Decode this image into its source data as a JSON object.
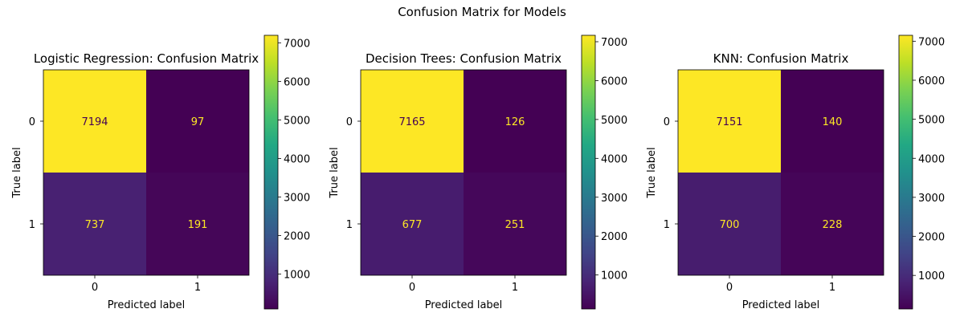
{
  "figure_title": "Confusion Matrix for Models",
  "chart_data": [
    {
      "type": "heatmap",
      "title": "Logistic Regression: Confusion Matrix",
      "xlabel": "Predicted label",
      "ylabel": "True label",
      "x_categories": [
        "0",
        "1"
      ],
      "y_categories": [
        "0",
        "1"
      ],
      "values": [
        [
          7194,
          97
        ],
        [
          737,
          191
        ]
      ],
      "colorbar": {
        "ticks": [
          1000,
          2000,
          3000,
          4000,
          5000,
          6000,
          7000
        ],
        "range": [
          97,
          7194
        ]
      },
      "colormap": "viridis"
    },
    {
      "type": "heatmap",
      "title": "Decision Trees: Confusion Matrix",
      "xlabel": "Predicted label",
      "ylabel": "True label",
      "x_categories": [
        "0",
        "1"
      ],
      "y_categories": [
        "0",
        "1"
      ],
      "values": [
        [
          7165,
          126
        ],
        [
          677,
          251
        ]
      ],
      "colorbar": {
        "ticks": [
          1000,
          2000,
          3000,
          4000,
          5000,
          6000,
          7000
        ],
        "range": [
          126,
          7165
        ]
      },
      "colormap": "viridis"
    },
    {
      "type": "heatmap",
      "title": "KNN: Confusion Matrix",
      "xlabel": "Predicted label",
      "ylabel": "True label",
      "x_categories": [
        "0",
        "1"
      ],
      "y_categories": [
        "0",
        "1"
      ],
      "values": [
        [
          7151,
          140
        ],
        [
          700,
          228
        ]
      ],
      "colorbar": {
        "ticks": [
          1000,
          2000,
          3000,
          4000,
          5000,
          6000,
          7000
        ],
        "range": [
          140,
          7151
        ]
      },
      "colormap": "viridis"
    }
  ]
}
